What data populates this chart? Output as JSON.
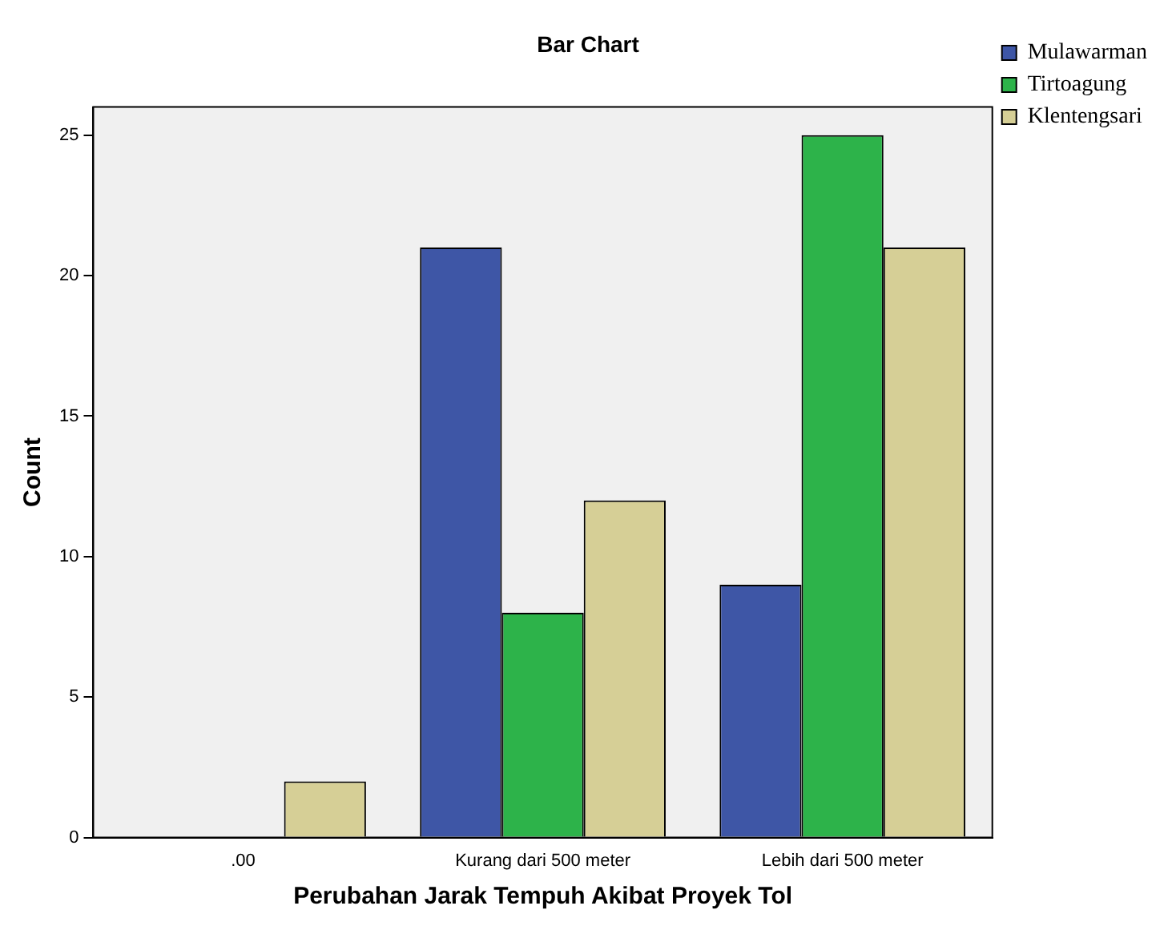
{
  "chart_data": {
    "type": "bar",
    "title": "Bar Chart",
    "xlabel": "Perubahan Jarak Tempuh Akibat Proyek Tol",
    "ylabel": "Count",
    "categories": [
      ".00",
      "Kurang dari 500 meter",
      "Lebih dari 500 meter"
    ],
    "series": [
      {
        "name": "Mulawarman",
        "color": "#3e56a6",
        "values": [
          0,
          21,
          9
        ]
      },
      {
        "name": "Tirtoagung",
        "color": "#2db34a",
        "values": [
          0,
          8,
          25
        ]
      },
      {
        "name": "Klentengsari",
        "color": "#d6cf96",
        "values": [
          2,
          12,
          21
        ]
      }
    ],
    "ylim": [
      0,
      26
    ],
    "yticks": [
      0,
      5,
      10,
      15,
      20,
      25
    ],
    "grid": false,
    "legend": "top right"
  }
}
